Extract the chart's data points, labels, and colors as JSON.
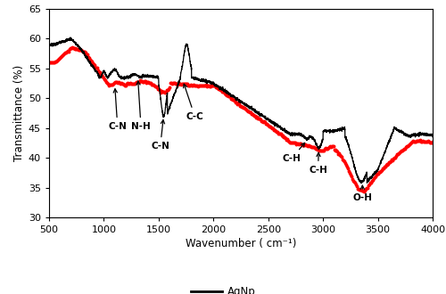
{
  "xlim": [
    500,
    4000
  ],
  "ylim": [
    30,
    65
  ],
  "xlabel": "Wavenumber ( cm⁻¹)",
  "ylabel": "Transmittance (%)",
  "yticks": [
    30,
    35,
    40,
    45,
    50,
    55,
    60,
    65
  ],
  "xticks": [
    500,
    1000,
    1500,
    2000,
    2500,
    3000,
    3500,
    4000
  ],
  "agnp_color": "#000000",
  "leaf_color": "#ff0000",
  "figsize": [
    5.0,
    3.3
  ],
  "dpi": 100
}
